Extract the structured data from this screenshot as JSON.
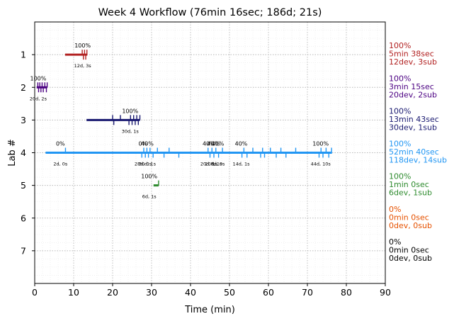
{
  "chart_data": {
    "type": "timeline",
    "title": "Week 4 Workflow (76min 16sec; 186d; 21s)",
    "xlabel": "Time (min)",
    "ylabel": "Lab #",
    "xlim": [
      0,
      90
    ],
    "ylim": [
      8,
      0
    ],
    "xticks": [
      0,
      10,
      20,
      30,
      40,
      50,
      60,
      70,
      80,
      90
    ],
    "yticks": [
      1,
      2,
      3,
      4,
      5,
      6,
      7
    ],
    "grid": true,
    "labs": [
      {
        "lab": 1,
        "color": "#b22222",
        "start": 7.8,
        "end": 13.5,
        "ticks": [
          12.2,
          12.5,
          12.8,
          13.1,
          13.4
        ],
        "subs": [
          {
            "x": 12.3,
            "pct": "100%",
            "info": "12d, 3s"
          }
        ],
        "summary": [
          "100%",
          "5min 38sec",
          "12dev, 3sub"
        ]
      },
      {
        "lab": 2,
        "color": "#4b0082",
        "start": 0.5,
        "end": 3.2,
        "ticks": [
          0.8,
          1.0,
          1.3,
          1.6,
          1.9,
          2.2,
          2.6,
          3.0,
          3.2
        ],
        "subs": [
          {
            "x": 0.9,
            "pct": "100%",
            "info": "20d, 2s"
          }
        ],
        "summary": [
          "100%",
          "3min 15sec",
          "20dev, 2sub"
        ]
      },
      {
        "lab": 3,
        "color": "#191970",
        "start": 13.3,
        "end": 27.0,
        "ticks": [
          20.0,
          20.3,
          22.0,
          24.2,
          24.6,
          25.0,
          25.4,
          25.8,
          26.2,
          26.6,
          27.0
        ],
        "subs": [
          {
            "x": 24.5,
            "pct": "100%",
            "info": "30d, 1s"
          }
        ],
        "summary": [
          "100%",
          "13min 43sec",
          "30dev, 1sub"
        ]
      },
      {
        "lab": 4,
        "color": "#2196f3",
        "start": 2.8,
        "end": 76.3,
        "ticks": [
          7.9,
          27.5,
          28.0,
          28.4,
          28.8,
          29.2,
          29.6,
          30.4,
          31.5,
          33.2,
          34.5,
          37.0,
          44.5,
          45.0,
          45.5,
          46.0,
          46.5,
          47.2,
          48.2,
          53.2,
          53.7,
          54.5,
          56.0,
          58.0,
          58.5,
          59.0,
          60.5,
          62.0,
          63.2,
          64.5,
          67.0,
          73.0,
          73.5,
          74.0,
          74.8,
          75.5,
          76.2
        ],
        "subs": [
          {
            "x": 6.6,
            "pct": "0%",
            "info": "2d, 0s"
          },
          {
            "x": 27.8,
            "pct": "0%",
            "info": "28d, 0s"
          },
          {
            "x": 28.9,
            "pct": "40%",
            "info": "30d, 1s"
          },
          {
            "x": 44.7,
            "pct": "40%",
            "info": "20d, 1s"
          },
          {
            "x": 45.9,
            "pct": "40%",
            "info": "20d, 1s"
          },
          {
            "x": 47.0,
            "pct": "40%",
            "info": "8d, 0s"
          },
          {
            "x": 53.0,
            "pct": "40%",
            "info": "14d, 1s"
          },
          {
            "x": 73.4,
            "pct": "100%",
            "info": "44d, 10s"
          }
        ],
        "summary": [
          "100%",
          "52min 40sec",
          "118dev, 14sub"
        ]
      },
      {
        "lab": 5,
        "color": "#2e8b2e",
        "start": 30.5,
        "end": 31.8,
        "ticks": [
          31.8
        ],
        "subs": [
          {
            "x": 29.4,
            "pct": "100%",
            "info": "6d, 1s"
          }
        ],
        "summary": [
          "100%",
          "1min 0sec",
          "6dev, 1sub"
        ]
      },
      {
        "lab": 6,
        "color": "#e65100",
        "start": null,
        "end": null,
        "ticks": [],
        "subs": [],
        "summary": [
          "0%",
          "0min 0sec",
          "0dev, 0sub"
        ]
      },
      {
        "lab": 7,
        "color": "#000000",
        "start": null,
        "end": null,
        "ticks": [],
        "subs": [],
        "summary": [
          "0%",
          "0min 0sec",
          "0dev, 0sub"
        ]
      }
    ]
  }
}
